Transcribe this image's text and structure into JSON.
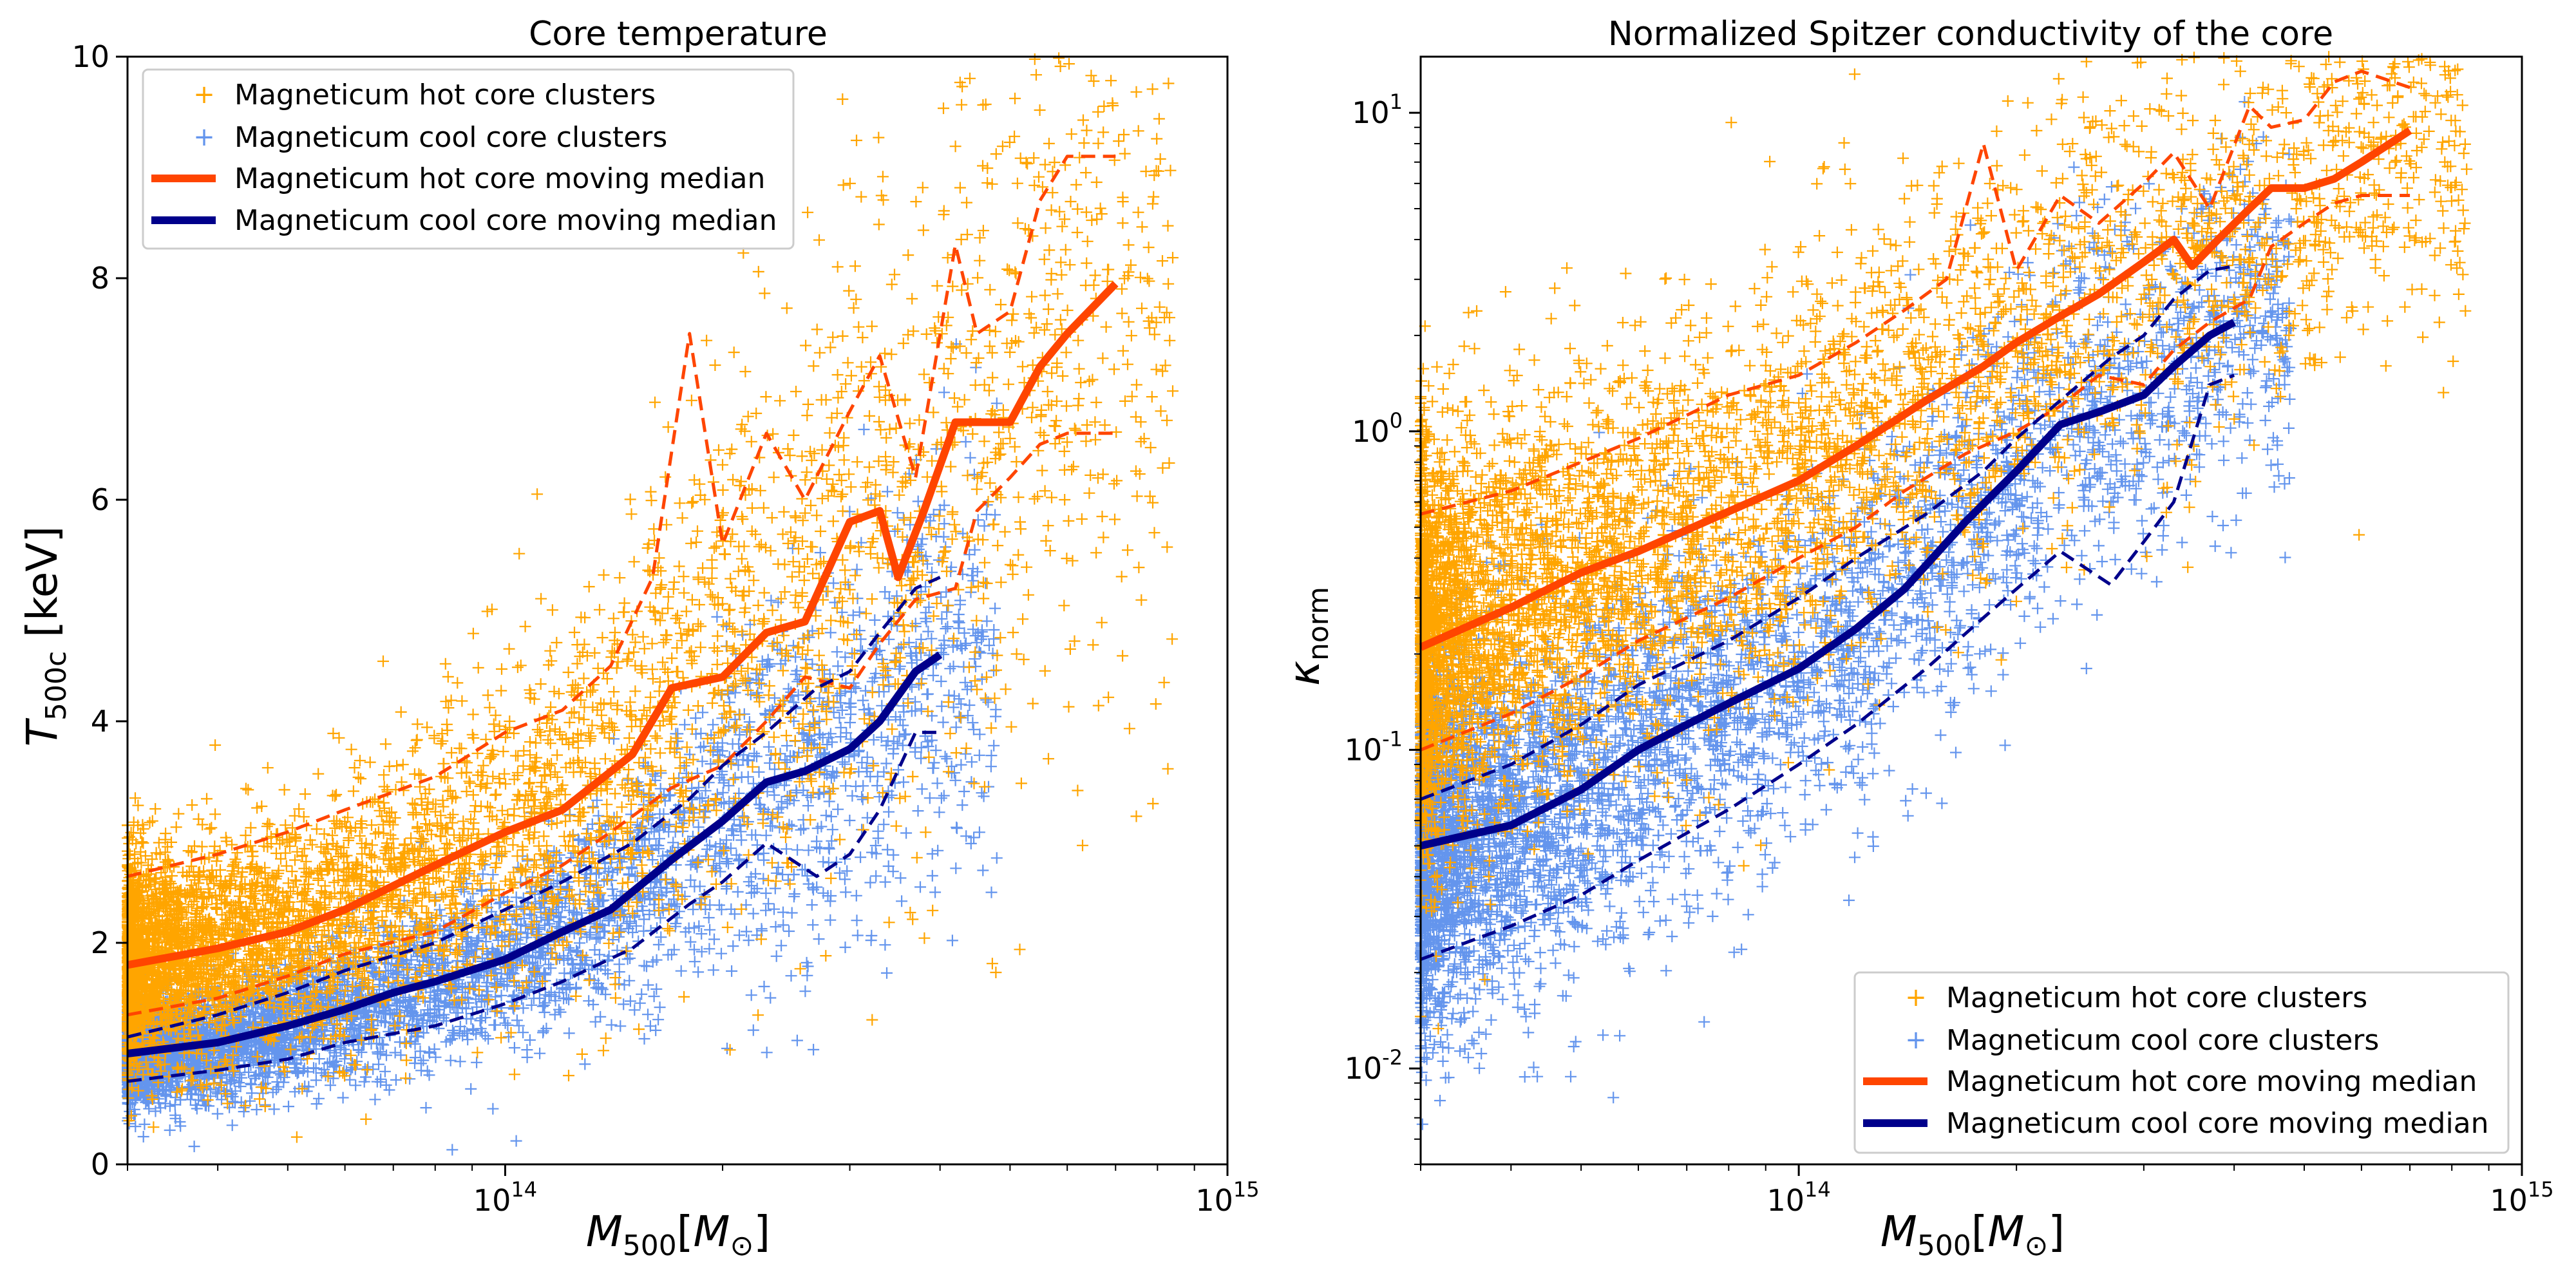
{
  "chart_data": [
    {
      "type": "scatter",
      "title": "Core temperature",
      "xlabel": "M500[M⊙]",
      "ylabel": "T500c [keV]",
      "xscale": "log",
      "yscale": "linear",
      "xlim": [
        30000000000000.0,
        1000000000000000.0
      ],
      "ylim": [
        0,
        10
      ],
      "xticks": [
        100000000000000.0,
        1000000000000000.0
      ],
      "yticks": [
        0,
        2,
        4,
        6,
        8,
        10
      ],
      "legend_position": "upper left",
      "colors": {
        "hot": "#FFA500",
        "cool": "#6495ED",
        "hot_median": "#FF4500",
        "cool_median": "#00008B"
      },
      "legend": [
        "Magneticum hot core clusters",
        "Magneticum cool core clusters",
        "Magneticum hot core moving median",
        "Magneticum cool core moving median"
      ],
      "series": [
        {
          "name": "Magneticum hot core moving median",
          "style": "solid",
          "x": [
            30000000000000.0,
            40000000000000.0,
            50000000000000.0,
            60000000000000.0,
            80000000000000.0,
            100000000000000.0,
            120000000000000.0,
            150000000000000.0,
            170000000000000.0,
            200000000000000.0,
            230000000000000.0,
            260000000000000.0,
            300000000000000.0,
            330000000000000.0,
            350000000000000.0,
            380000000000000.0,
            420000000000000.0,
            450000000000000.0,
            500000000000000.0,
            550000000000000.0,
            600000000000000.0,
            700000000000000.0
          ],
          "y": [
            1.8,
            1.95,
            2.1,
            2.3,
            2.7,
            3.0,
            3.2,
            3.7,
            4.3,
            4.4,
            4.8,
            4.9,
            5.8,
            5.9,
            5.3,
            5.9,
            6.7,
            6.7,
            6.7,
            7.2,
            7.5,
            7.95
          ]
        },
        {
          "name": "",
          "style": "dashed",
          "x": [
            30000000000000.0,
            40000000000000.0,
            50000000000000.0,
            60000000000000.0,
            80000000000000.0,
            100000000000000.0,
            120000000000000.0,
            140000000000000.0,
            160000000000000.0,
            180000000000000.0,
            200000000000000.0,
            230000000000000.0,
            260000000000000.0,
            300000000000000.0,
            330000000000000.0,
            370000000000000.0,
            420000000000000.0,
            450000000000000.0,
            500000000000000.0,
            550000000000000.0,
            600000000000000.0,
            700000000000000.0
          ],
          "y": [
            2.6,
            2.8,
            3.0,
            3.2,
            3.5,
            3.9,
            4.1,
            4.5,
            5.3,
            7.5,
            5.6,
            6.6,
            6.0,
            6.8,
            7.3,
            6.2,
            8.3,
            7.5,
            7.7,
            8.7,
            9.1,
            9.1
          ]
        },
        {
          "name": "",
          "style": "dashed",
          "x": [
            30000000000000.0,
            40000000000000.0,
            50000000000000.0,
            60000000000000.0,
            80000000000000.0,
            100000000000000.0,
            120000000000000.0,
            140000000000000.0,
            170000000000000.0,
            200000000000000.0,
            230000000000000.0,
            260000000000000.0,
            300000000000000.0,
            330000000000000.0,
            370000000000000.0,
            420000000000000.0,
            450000000000000.0,
            500000000000000.0,
            550000000000000.0,
            600000000000000.0,
            700000000000000.0
          ],
          "y": [
            1.35,
            1.5,
            1.7,
            1.9,
            2.1,
            2.45,
            2.7,
            3.0,
            3.4,
            3.6,
            4.0,
            4.4,
            4.3,
            4.7,
            5.1,
            5.2,
            5.9,
            6.2,
            6.5,
            6.6,
            6.6
          ]
        },
        {
          "name": "Magneticum cool core moving median",
          "style": "solid",
          "x": [
            30000000000000.0,
            40000000000000.0,
            50000000000000.0,
            60000000000000.0,
            70000000000000.0,
            80000000000000.0,
            100000000000000.0,
            120000000000000.0,
            140000000000000.0,
            170000000000000.0,
            200000000000000.0,
            230000000000000.0,
            260000000000000.0,
            300000000000000.0,
            330000000000000.0,
            370000000000000.0,
            400000000000000.0
          ],
          "y": [
            1.0,
            1.1,
            1.25,
            1.4,
            1.55,
            1.65,
            1.85,
            2.1,
            2.3,
            2.75,
            3.1,
            3.45,
            3.55,
            3.75,
            4.0,
            4.45,
            4.6
          ]
        },
        {
          "name": "",
          "style": "dashed",
          "x": [
            30000000000000.0,
            40000000000000.0,
            50000000000000.0,
            60000000000000.0,
            80000000000000.0,
            100000000000000.0,
            120000000000000.0,
            150000000000000.0,
            180000000000000.0,
            200000000000000.0,
            230000000000000.0,
            270000000000000.0,
            300000000000000.0,
            330000000000000.0,
            370000000000000.0,
            400000000000000.0
          ],
          "y": [
            1.15,
            1.35,
            1.55,
            1.75,
            2.0,
            2.3,
            2.55,
            2.9,
            3.3,
            3.6,
            3.9,
            4.3,
            4.45,
            4.8,
            5.2,
            5.3
          ]
        },
        {
          "name": "",
          "style": "dashed",
          "x": [
            30000000000000.0,
            40000000000000.0,
            50000000000000.0,
            60000000000000.0,
            80000000000000.0,
            100000000000000.0,
            120000000000000.0,
            150000000000000.0,
            180000000000000.0,
            200000000000000.0,
            230000000000000.0,
            270000000000000.0,
            300000000000000.0,
            330000000000000.0,
            370000000000000.0,
            400000000000000.0
          ],
          "y": [
            0.75,
            0.85,
            0.95,
            1.1,
            1.25,
            1.45,
            1.65,
            1.95,
            2.35,
            2.55,
            2.9,
            2.6,
            2.8,
            3.2,
            3.9,
            3.9
          ]
        }
      ]
    },
    {
      "type": "scatter",
      "title": "Normalized Spitzer conductivity of the core",
      "xlabel": "M500[M⊙]",
      "ylabel": "κnorm",
      "xscale": "log",
      "yscale": "log",
      "xlim": [
        30000000000000.0,
        1000000000000000.0
      ],
      "ylim": [
        0.005,
        15
      ],
      "xticks": [
        100000000000000.0,
        1000000000000000.0
      ],
      "yticks": [
        0.01,
        0.1,
        1,
        10
      ],
      "legend_position": "lower right",
      "colors": {
        "hot": "#FFA500",
        "cool": "#6495ED",
        "hot_median": "#FF4500",
        "cool_median": "#00008B"
      },
      "legend": [
        "Magneticum hot core clusters",
        "Magneticum cool core clusters",
        "Magneticum hot core moving median",
        "Magneticum cool core moving median"
      ],
      "series": [
        {
          "name": "Magneticum hot core moving median",
          "style": "solid",
          "x": [
            30000000000000.0,
            40000000000000.0,
            50000000000000.0,
            60000000000000.0,
            80000000000000.0,
            100000000000000.0,
            120000000000000.0,
            150000000000000.0,
            180000000000000.0,
            200000000000000.0,
            230000000000000.0,
            260000000000000.0,
            300000000000000.0,
            330000000000000.0,
            350000000000000.0,
            380000000000000.0,
            420000000000000.0,
            450000000000000.0,
            500000000000000.0,
            550000000000000.0,
            600000000000000.0,
            700000000000000.0
          ],
          "y": [
            0.21,
            0.28,
            0.36,
            0.42,
            0.56,
            0.7,
            0.9,
            1.25,
            1.6,
            1.9,
            2.3,
            2.7,
            3.4,
            4.0,
            3.3,
            4.0,
            5.0,
            5.8,
            5.8,
            6.2,
            7.0,
            8.8
          ]
        },
        {
          "name": "",
          "style": "dashed",
          "x": [
            30000000000000.0,
            40000000000000.0,
            50000000000000.0,
            60000000000000.0,
            80000000000000.0,
            100000000000000.0,
            120000000000000.0,
            140000000000000.0,
            160000000000000.0,
            180000000000000.0,
            200000000000000.0,
            230000000000000.0,
            260000000000000.0,
            300000000000000.0,
            330000000000000.0,
            370000000000000.0,
            420000000000000.0,
            450000000000000.0,
            500000000000000.0,
            550000000000000.0,
            600000000000000.0,
            700000000000000.0
          ],
          "y": [
            0.55,
            0.65,
            0.8,
            0.95,
            1.3,
            1.5,
            1.9,
            2.4,
            3.0,
            8.0,
            3.2,
            5.5,
            4.5,
            6.0,
            7.5,
            5.0,
            10.5,
            9.0,
            9.5,
            12.5,
            13.5,
            12.0
          ]
        },
        {
          "name": "",
          "style": "dashed",
          "x": [
            30000000000000.0,
            40000000000000.0,
            50000000000000.0,
            60000000000000.0,
            80000000000000.0,
            100000000000000.0,
            120000000000000.0,
            140000000000000.0,
            170000000000000.0,
            200000000000000.0,
            230000000000000.0,
            260000000000000.0,
            300000000000000.0,
            330000000000000.0,
            370000000000000.0,
            420000000000000.0,
            450000000000000.0,
            500000000000000.0,
            550000000000000.0,
            600000000000000.0,
            700000000000000.0
          ],
          "y": [
            0.1,
            0.13,
            0.17,
            0.22,
            0.3,
            0.4,
            0.5,
            0.65,
            0.85,
            1.0,
            1.2,
            1.5,
            1.4,
            1.8,
            2.2,
            2.6,
            3.8,
            4.5,
            5.2,
            5.5,
            5.5
          ]
        },
        {
          "name": "Magneticum cool core moving median",
          "style": "solid",
          "x": [
            30000000000000.0,
            40000000000000.0,
            50000000000000.0,
            60000000000000.0,
            70000000000000.0,
            80000000000000.0,
            100000000000000.0,
            120000000000000.0,
            140000000000000.0,
            170000000000000.0,
            200000000000000.0,
            230000000000000.0,
            260000000000000.0,
            300000000000000.0,
            330000000000000.0,
            370000000000000.0,
            400000000000000.0
          ],
          "y": [
            0.05,
            0.058,
            0.075,
            0.1,
            0.12,
            0.14,
            0.18,
            0.24,
            0.32,
            0.52,
            0.75,
            1.05,
            1.15,
            1.3,
            1.6,
            2.0,
            2.2
          ]
        },
        {
          "name": "",
          "style": "dashed",
          "x": [
            30000000000000.0,
            40000000000000.0,
            50000000000000.0,
            60000000000000.0,
            80000000000000.0,
            100000000000000.0,
            120000000000000.0,
            150000000000000.0,
            180000000000000.0,
            200000000000000.0,
            230000000000000.0,
            270000000000000.0,
            300000000000000.0,
            330000000000000.0,
            370000000000000.0,
            400000000000000.0
          ],
          "y": [
            0.07,
            0.09,
            0.12,
            0.16,
            0.22,
            0.3,
            0.4,
            0.55,
            0.75,
            0.95,
            1.25,
            1.7,
            2.0,
            2.6,
            3.2,
            3.3
          ]
        },
        {
          "name": "",
          "style": "dashed",
          "x": [
            30000000000000.0,
            40000000000000.0,
            50000000000000.0,
            60000000000000.0,
            80000000000000.0,
            100000000000000.0,
            120000000000000.0,
            150000000000000.0,
            180000000000000.0,
            200000000000000.0,
            230000000000000.0,
            270000000000000.0,
            300000000000000.0,
            330000000000000.0,
            370000000000000.0,
            400000000000000.0
          ],
          "y": [
            0.022,
            0.028,
            0.035,
            0.045,
            0.065,
            0.09,
            0.12,
            0.18,
            0.26,
            0.32,
            0.42,
            0.33,
            0.45,
            0.6,
            1.4,
            1.5
          ]
        }
      ]
    }
  ]
}
